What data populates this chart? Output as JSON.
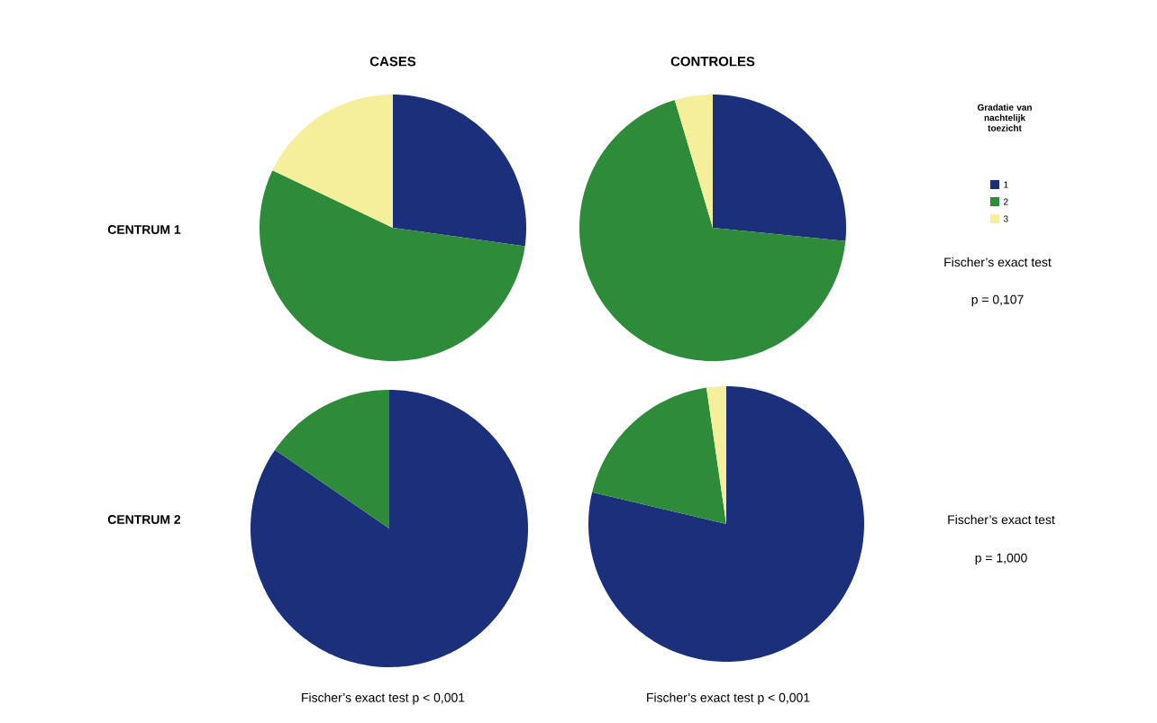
{
  "chart_data": [
    {
      "type": "pie",
      "title": "CASES",
      "categories": [
        null,
        null,
        null
      ],
      "values": [
        27.2,
        54.9,
        17.9
      ],
      "colors": [
        "#1b2f7a",
        "#2e8b3a",
        "#f5ee9b"
      ],
      "legend": false,
      "annotations": [
        "CENTRUM 1"
      ]
    },
    {
      "type": "pie",
      "title": "CONTROLES",
      "categories": [
        "1",
        "2",
        "3"
      ],
      "values": [
        26.6,
        68.8,
        4.6
      ],
      "colors": [
        "#1b2f7a",
        "#2e8b3a",
        "#f5ee9b"
      ],
      "legend": "right",
      "legend_title": "Gradatie van nachtelijk toezicht",
      "annotations": [
        "Fischer’s exact test",
        "p = 0,107"
      ]
    },
    {
      "type": "pie",
      "categories": [
        null,
        null
      ],
      "values": [
        84.6,
        15.4
      ],
      "colors": [
        "#1b2f7a",
        "#2e8b3a"
      ],
      "legend": false,
      "annotations": [
        "CENTRUM 2",
        "Fischer’s exact test p < 0,001"
      ]
    },
    {
      "type": "pie",
      "categories": [
        null,
        null,
        null
      ],
      "values": [
        78.7,
        19.0,
        2.3
      ],
      "colors": [
        "#1b2f7a",
        "#2e8b3a",
        "#f5ee9b"
      ],
      "legend": false,
      "annotations": [
        "Fischer’s exact test",
        "p = 1,000",
        "Fischer’s exact test p < 0,001"
      ]
    }
  ]
}
